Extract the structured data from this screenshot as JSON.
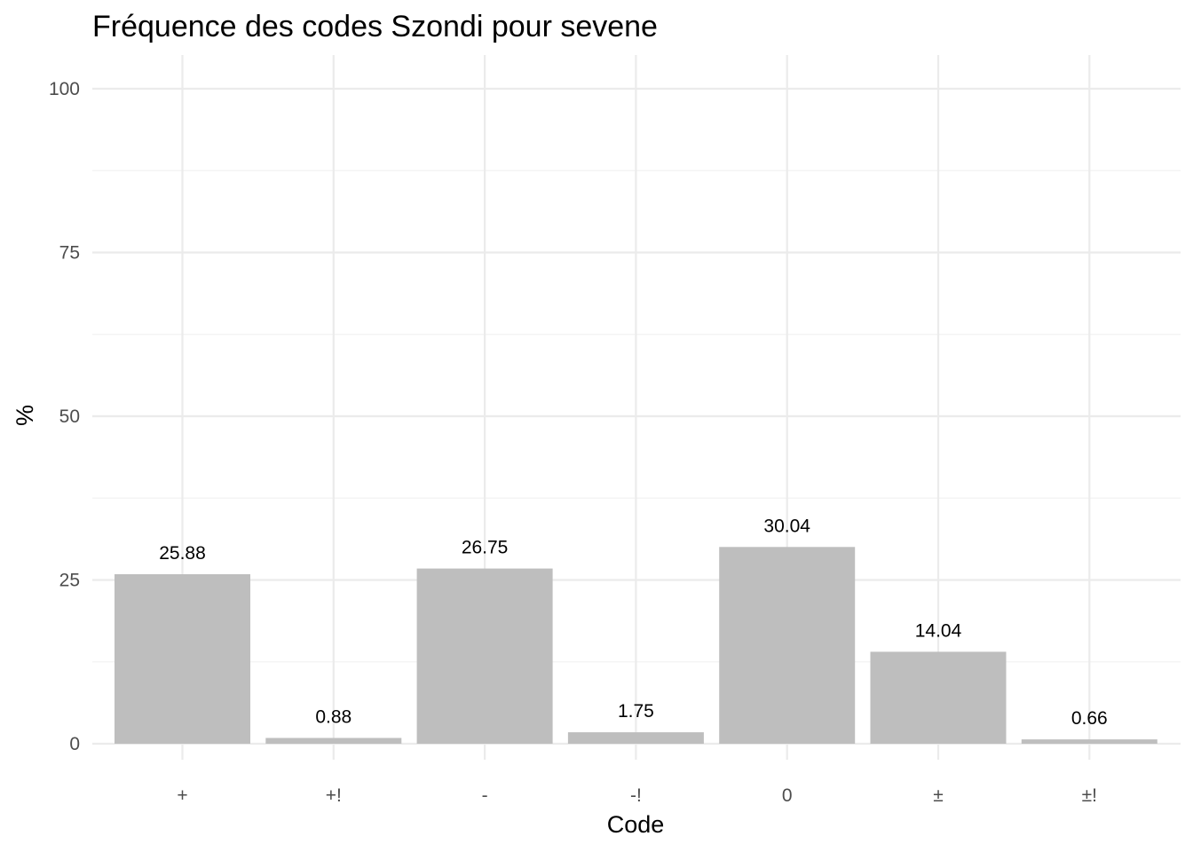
{
  "chart_data": {
    "type": "bar",
    "title": "Fréquence des codes Szondi pour sevene",
    "xlabel": "Code",
    "ylabel": "%",
    "categories": [
      "+",
      "+!",
      "-",
      "-!",
      "0",
      "±",
      "±!"
    ],
    "values": [
      25.88,
      0.88,
      26.75,
      1.75,
      30.04,
      14.04,
      0.66
    ],
    "data_labels": [
      "25.88",
      "0.88",
      "26.75",
      "1.75",
      "30.04",
      "14.04",
      "0.66"
    ],
    "ylim": [
      0,
      100
    ],
    "yticks": [
      0,
      25,
      50,
      75,
      100
    ],
    "yticks_minor": [
      12.5,
      37.5,
      62.5,
      87.5
    ],
    "grid": true,
    "legend": "none",
    "bar_color": "#bebebe",
    "grid_color": "#ebebeb"
  }
}
